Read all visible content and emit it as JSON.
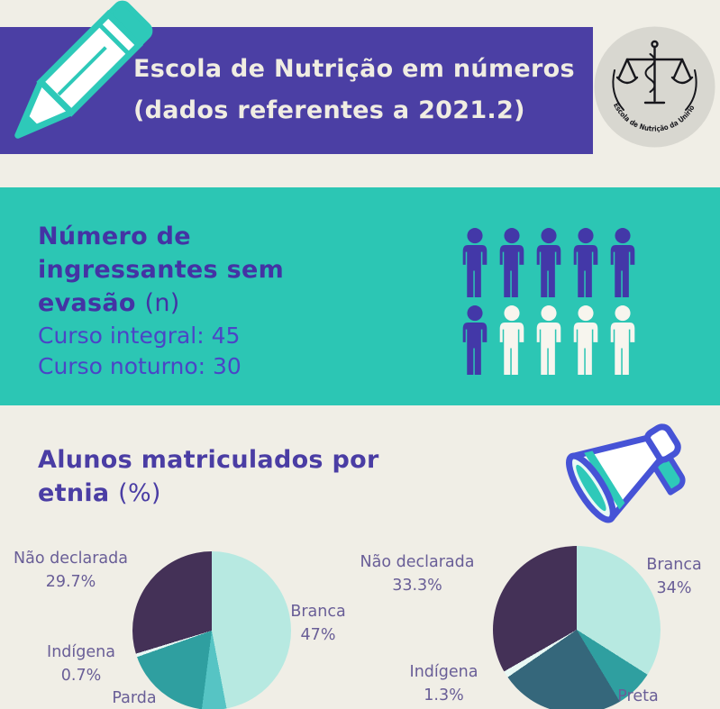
{
  "colors": {
    "background": "#f0eee6",
    "banner_purple": "#4b3fa4",
    "teal_band": "#2cc6b4",
    "heading_purple": "#4433a4",
    "stats_blue": "#4b45c6",
    "pie_label_text": "#695e97",
    "illustration_teal": "#2ec9b9",
    "illustration_blue_outline": "#4653d6"
  },
  "header": {
    "title_line1": "Escola de Nutrição em números",
    "title_line2": "(dados referentes a 2021.2)"
  },
  "logo": {
    "text": "Escola de Nutrição da Unirio"
  },
  "ingressantes": {
    "heading_lines": [
      "Número de",
      "ingressantes sem"
    ],
    "heading_bold": "evasão",
    "heading_light": "(n)",
    "stats": [
      "Curso integral: 45",
      "Curso noturno: 30"
    ],
    "pictogram": {
      "rows": [
        [
          "filled",
          "filled",
          "filled",
          "filled",
          "filled"
        ],
        [
          "filled",
          "empty",
          "empty",
          "empty",
          "empty"
        ]
      ],
      "filled_color": "#4338a8",
      "empty_color": "#f7f5ee"
    }
  },
  "etnia": {
    "heading_line1": "Alunos matriculados por",
    "heading_bold": "etnia",
    "heading_light": "(%)"
  },
  "chart_data": [
    {
      "type": "pie",
      "position": "left",
      "title": "Alunos matriculados por etnia (%)",
      "unit": "%",
      "direction": "clockwise",
      "start_angle_deg": 0,
      "slices": [
        {
          "label": "Branca",
          "value": 47,
          "pct_text": "47%",
          "color": "#b7e9e1"
        },
        {
          "label": "",
          "value": 5,
          "pct_text": "",
          "color": "#56c4c4",
          "note": "label cut off at image edge"
        },
        {
          "label": "Parda",
          "value": 17.6,
          "pct_text": "",
          "color": "#2f9fa0",
          "note": "percentage cut off at image edge"
        },
        {
          "label": "Indígena",
          "value": 0.7,
          "pct_text": "0.7%",
          "color": "#e8f8f4"
        },
        {
          "label": "Não declarada",
          "value": 29.7,
          "pct_text": "29.7%",
          "color": "#443157"
        }
      ]
    },
    {
      "type": "pie",
      "position": "right",
      "title": "Alunos matriculados por etnia (%)",
      "unit": "%",
      "direction": "clockwise",
      "start_angle_deg": 0,
      "slices": [
        {
          "label": "Branca",
          "value": 34,
          "pct_text": "34%",
          "color": "#b7e9e1"
        },
        {
          "label": "Preta",
          "value": 7.4,
          "pct_text": "",
          "color": "#2f9fa0",
          "note": "percentage cut off at image edge"
        },
        {
          "label": "",
          "value": 24,
          "pct_text": "",
          "color": "#35677b",
          "note": "label cut off at image edge"
        },
        {
          "label": "Indígena",
          "value": 1.3,
          "pct_text": "1.3%",
          "color": "#e8f8f4"
        },
        {
          "label": "Não declarada",
          "value": 33.3,
          "pct_text": "33.3%",
          "color": "#443157"
        }
      ]
    }
  ]
}
